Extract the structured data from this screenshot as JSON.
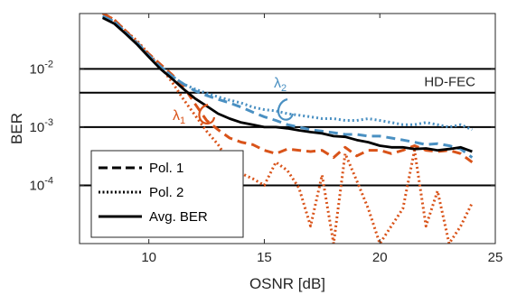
{
  "chart_data": {
    "type": "line",
    "xlabel": "OSNR [dB]",
    "ylabel": "BER",
    "xlim": [
      7,
      25
    ],
    "ylim_log10": [
      -5.0,
      -3.0
    ],
    "y_scale": "log",
    "xticks": [
      10,
      15,
      20,
      25
    ],
    "yticks": [
      {
        "base": "10",
        "exp": "-2",
        "value": 0.01
      },
      {
        "base": "10",
        "exp": "-3",
        "value": 0.001
      },
      {
        "base": "10",
        "exp": "-4",
        "value": 0.0001
      }
    ],
    "hlines": [
      {
        "value": 0.01
      },
      {
        "value": 0.0039,
        "label": "HD-FEC"
      },
      {
        "value": 0.001
      },
      {
        "value": 0.0001
      }
    ],
    "legend": {
      "placement": "bottom-left",
      "entries": [
        {
          "label": "Pol. 1",
          "style": "dashed"
        },
        {
          "label": "Pol. 2",
          "style": "dotted"
        },
        {
          "label": "Avg. BER",
          "style": "solid"
        }
      ]
    },
    "annotations": [
      {
        "text": "λ",
        "sub": "1",
        "color": "#D95319"
      },
      {
        "text": "λ",
        "sub": "2",
        "color": "#4A90C2"
      }
    ],
    "colors": {
      "lambda1": "#D95319",
      "lambda2": "#4A90C2",
      "avg": "#000000"
    },
    "series": [
      {
        "group": "lambda1",
        "style": "dashed",
        "x": [
          8,
          8.5,
          9,
          9.5,
          10,
          10.5,
          11,
          11.5,
          12,
          12.5,
          13,
          13.5,
          14,
          14.5,
          15,
          15.5,
          16,
          16.5,
          17,
          17.5,
          18,
          18.5,
          19,
          19.5,
          20,
          20.5,
          21,
          21.5,
          22,
          22.5,
          23,
          23.5,
          24
        ],
        "values": [
          0.09,
          0.07,
          0.045,
          0.028,
          0.018,
          0.012,
          0.008,
          0.005,
          0.0025,
          0.0013,
          0.0009,
          0.00065,
          0.00055,
          0.0005,
          0.0004,
          0.00035,
          0.00042,
          0.0004,
          0.00038,
          0.0004,
          0.0003,
          0.00045,
          0.00032,
          0.0004,
          0.0004,
          0.00035,
          0.0004,
          0.00048,
          0.0004,
          0.00038,
          0.0004,
          0.00035,
          0.00025
        ]
      },
      {
        "group": "lambda1",
        "style": "dotted",
        "x": [
          8,
          8.5,
          9,
          9.5,
          10,
          10.5,
          11,
          11.5,
          12,
          12.5,
          13,
          13.5,
          14,
          14.5,
          15,
          15.5,
          16,
          16.5,
          17,
          17.5,
          18,
          18.5,
          19,
          19.5,
          20,
          20.5,
          21,
          21.5,
          22,
          22.5,
          23,
          23.5,
          24
        ],
        "values": [
          0.09,
          0.07,
          0.045,
          0.03,
          0.018,
          0.011,
          0.006,
          0.003,
          0.0016,
          0.00085,
          0.0005,
          0.00025,
          0.00016,
          0.00013,
          0.0001,
          0.00025,
          0.00018,
          9e-05,
          2e-05,
          0.00015,
          1e-05,
          0.00035,
          0.00012,
          4e-05,
          1e-05,
          2e-05,
          4e-05,
          0.0004,
          2e-05,
          8e-05,
          1e-05,
          2e-05,
          5e-05
        ]
      },
      {
        "group": "lambda2",
        "style": "dashed",
        "x": [
          8,
          8.5,
          9,
          9.5,
          10,
          10.5,
          11,
          11.5,
          12,
          12.5,
          13,
          13.5,
          14,
          14.5,
          15,
          15.5,
          16,
          16.5,
          17,
          17.5,
          18,
          18.5,
          19,
          19.5,
          20,
          20.5,
          21,
          21.5,
          22,
          22.5,
          23,
          23.5,
          24
        ],
        "values": [
          0.08,
          0.065,
          0.042,
          0.028,
          0.017,
          0.011,
          0.0075,
          0.0055,
          0.0042,
          0.0035,
          0.003,
          0.0026,
          0.0022,
          0.0018,
          0.0015,
          0.0013,
          0.0011,
          0.001,
          0.0009,
          0.00085,
          0.0008,
          0.00075,
          0.00075,
          0.0007,
          0.0007,
          0.00065,
          0.0006,
          0.00055,
          0.0005,
          0.00052,
          0.00048,
          0.00042,
          0.0003
        ]
      },
      {
        "group": "lambda2",
        "style": "dotted",
        "x": [
          8,
          8.5,
          9,
          9.5,
          10,
          10.5,
          11,
          11.5,
          12,
          12.5,
          13,
          13.5,
          14,
          14.5,
          15,
          15.5,
          16,
          16.5,
          17,
          17.5,
          18,
          18.5,
          19,
          19.5,
          20,
          20.5,
          21,
          21.5,
          22,
          22.5,
          23,
          23.5,
          24
        ],
        "values": [
          0.08,
          0.065,
          0.042,
          0.028,
          0.017,
          0.011,
          0.0075,
          0.0055,
          0.0045,
          0.0038,
          0.0033,
          0.0029,
          0.0026,
          0.0022,
          0.002,
          0.0019,
          0.0017,
          0.0016,
          0.0015,
          0.0014,
          0.0014,
          0.0013,
          0.0013,
          0.0014,
          0.0013,
          0.0012,
          0.0011,
          0.0011,
          0.0012,
          0.0011,
          0.001,
          0.0011,
          0.0009
        ]
      },
      {
        "group": "avg",
        "style": "solid",
        "x": [
          8,
          8.5,
          9,
          9.5,
          10,
          10.5,
          11,
          11.5,
          12,
          12.5,
          13,
          13.5,
          14,
          14.5,
          15,
          15.5,
          16,
          16.5,
          17,
          17.5,
          18,
          18.5,
          19,
          19.5,
          20,
          20.5,
          21,
          21.5,
          22,
          22.5,
          23,
          23.5,
          24
        ],
        "values": [
          0.075,
          0.06,
          0.04,
          0.026,
          0.016,
          0.01,
          0.0068,
          0.0045,
          0.0031,
          0.0023,
          0.0017,
          0.0014,
          0.0012,
          0.0011,
          0.001,
          0.001,
          0.00095,
          0.00088,
          0.00082,
          0.00078,
          0.0007,
          0.00068,
          0.0006,
          0.00055,
          0.00048,
          0.00045,
          0.00045,
          0.00042,
          0.00043,
          0.0004,
          0.00042,
          0.00045,
          0.00038
        ]
      }
    ]
  }
}
